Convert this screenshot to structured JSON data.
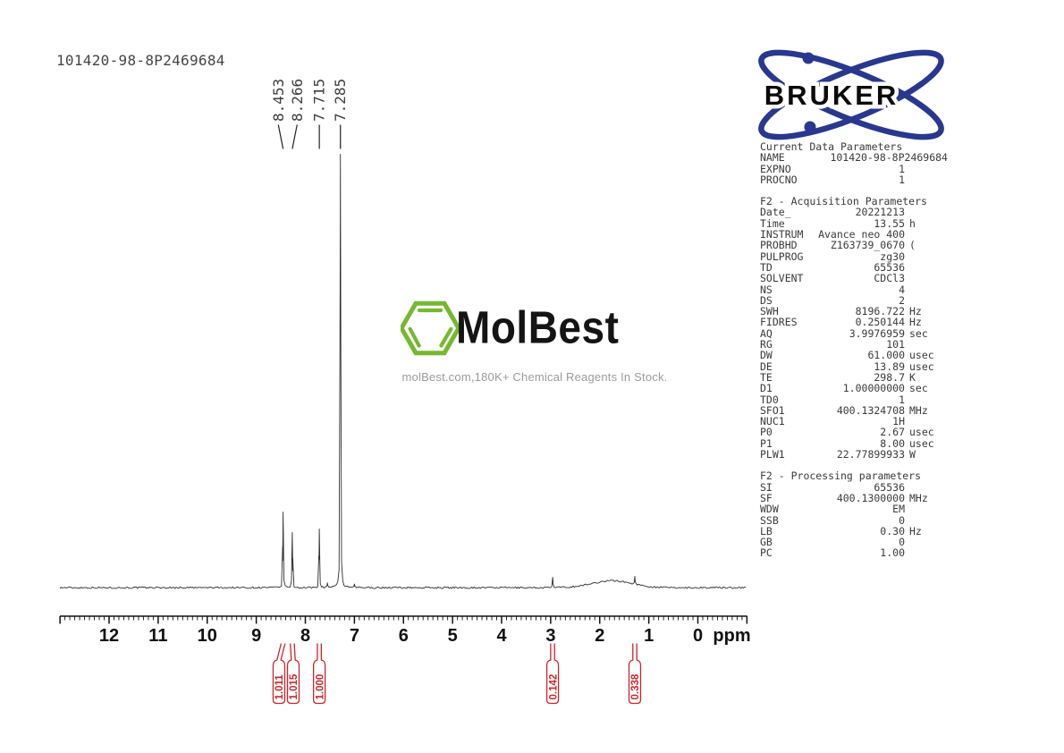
{
  "title": "101420-98-8P2469684",
  "bruker_logo": {
    "text": "BRUKER",
    "blue": "#28388f"
  },
  "molbest": {
    "name": "MolBest",
    "tagline": "molBest.com,180K+ Chemical Reagents In Stock.",
    "green": "#76b82f"
  },
  "colors": {
    "spectrum_line": "#2e2e2e",
    "integral_red": "#c9252b",
    "axis": "#111111",
    "peak_label_gray": "#3d3d3d"
  },
  "parameters": {
    "sections": [
      {
        "header": "Current Data Parameters",
        "rows": [
          [
            "NAME",
            "101420-98-8P2469684",
            ""
          ],
          [
            "EXPNO",
            "1",
            ""
          ],
          [
            "PROCNO",
            "1",
            ""
          ]
        ]
      },
      {
        "header": "F2 - Acquisition Parameters",
        "rows": [
          [
            "Date_",
            "20221213",
            ""
          ],
          [
            "Time",
            "13.55",
            "h"
          ],
          [
            "INSTRUM",
            "Avance neo 400",
            ""
          ],
          [
            "PROBHD",
            "Z163739_0670",
            "("
          ],
          [
            "PULPROG",
            "zg30",
            ""
          ],
          [
            "TD",
            "65536",
            ""
          ],
          [
            "SOLVENT",
            "CDCl3",
            ""
          ],
          [
            "NS",
            "4",
            ""
          ],
          [
            "DS",
            "2",
            ""
          ],
          [
            "SWH",
            "8196.722",
            "Hz"
          ],
          [
            "FIDRES",
            "0.250144",
            "Hz"
          ],
          [
            "AQ",
            "3.9976959",
            "sec"
          ],
          [
            "RG",
            "101",
            ""
          ],
          [
            "DW",
            "61.000",
            "usec"
          ],
          [
            "DE",
            "13.89",
            "usec"
          ],
          [
            "TE",
            "298.7",
            "K"
          ],
          [
            "D1",
            "1.00000000",
            "sec"
          ],
          [
            "TD0",
            "1",
            ""
          ],
          [
            "SFO1",
            "400.1324708",
            "MHz"
          ],
          [
            "NUC1",
            "1H",
            ""
          ],
          [
            "P0",
            "2.67",
            "usec"
          ],
          [
            "P1",
            "8.00",
            "usec"
          ],
          [
            "PLW1",
            "22.77899933",
            "W"
          ]
        ]
      },
      {
        "header": "F2 - Processing parameters",
        "rows": [
          [
            "SI",
            "65536",
            ""
          ],
          [
            "SF",
            "400.1300000",
            "MHz"
          ],
          [
            "WDW",
            "EM",
            ""
          ],
          [
            "SSB",
            "0",
            ""
          ],
          [
            "LB",
            "0.30",
            "Hz"
          ],
          [
            "GB",
            "0",
            ""
          ],
          [
            "PC",
            "1.00",
            ""
          ]
        ]
      }
    ]
  },
  "chart_data": {
    "type": "line",
    "title": "101420-98-8P2469684",
    "xlabel": "ppm",
    "x_range": [
      13,
      -1
    ],
    "axis_reversed": true,
    "x_ticks": [
      12,
      11,
      10,
      9,
      8,
      7,
      6,
      5,
      4,
      3,
      2,
      1,
      0
    ],
    "grid": false,
    "peak_labels": [
      "8.453",
      "8.266",
      "7.715",
      "7.285"
    ],
    "peaks": [
      {
        "ppm": 8.453,
        "height": 0.175
      },
      {
        "ppm": 8.266,
        "height": 0.128
      },
      {
        "ppm": 7.715,
        "height": 0.136
      },
      {
        "ppm": 7.285,
        "height": 1.0
      },
      {
        "ppm": 7.55,
        "height": 0.012
      },
      {
        "ppm": 7.0,
        "height": 0.009
      },
      {
        "ppm": 2.96,
        "height": 0.025
      },
      {
        "ppm": 1.75,
        "height": 0.016,
        "broad": true,
        "width_ppm": 0.8
      },
      {
        "ppm": 1.285,
        "height": 0.027
      }
    ],
    "integrals": [
      {
        "label": "1.011",
        "ppm": 8.453,
        "body_ppm": 8.538
      },
      {
        "label": "1.015",
        "ppm": 8.266,
        "body_ppm": 8.246
      },
      {
        "label": "1.000",
        "ppm": 7.715,
        "body_ppm": 7.715
      },
      {
        "label": "0.142",
        "ppm": 2.96,
        "body_ppm": 2.96
      },
      {
        "label": "0.338",
        "ppm": 1.285,
        "body_ppm": 1.285
      }
    ]
  }
}
